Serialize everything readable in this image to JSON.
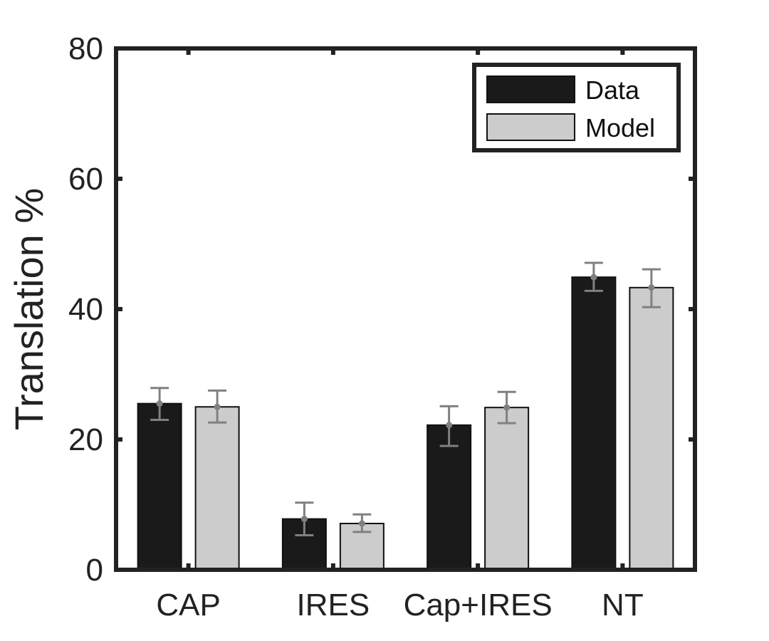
{
  "chart_data": {
    "type": "bar",
    "categories": [
      "CAP",
      "IRES",
      "Cap+IRES",
      "NT"
    ],
    "series": [
      {
        "name": "Data",
        "color": "#1a1a1a",
        "values": [
          25.5,
          7.8,
          22.2,
          44.9
        ],
        "err_low": [
          23.0,
          5.3,
          19.0,
          42.8
        ],
        "err_high": [
          27.9,
          10.3,
          25.1,
          47.1
        ]
      },
      {
        "name": "Model",
        "color": "#cccccc",
        "values": [
          25.0,
          7.1,
          24.9,
          43.3
        ],
        "err_low": [
          22.6,
          5.8,
          22.5,
          40.3
        ],
        "err_high": [
          27.5,
          8.5,
          27.3,
          46.1
        ]
      }
    ],
    "error_bar_color": "#808080",
    "ylabel": "Translation %",
    "xlabel": "",
    "ylim": [
      0,
      80
    ],
    "yticks": [
      "0",
      "20",
      "40",
      "60",
      "80"
    ],
    "legend_position": "top-right"
  }
}
